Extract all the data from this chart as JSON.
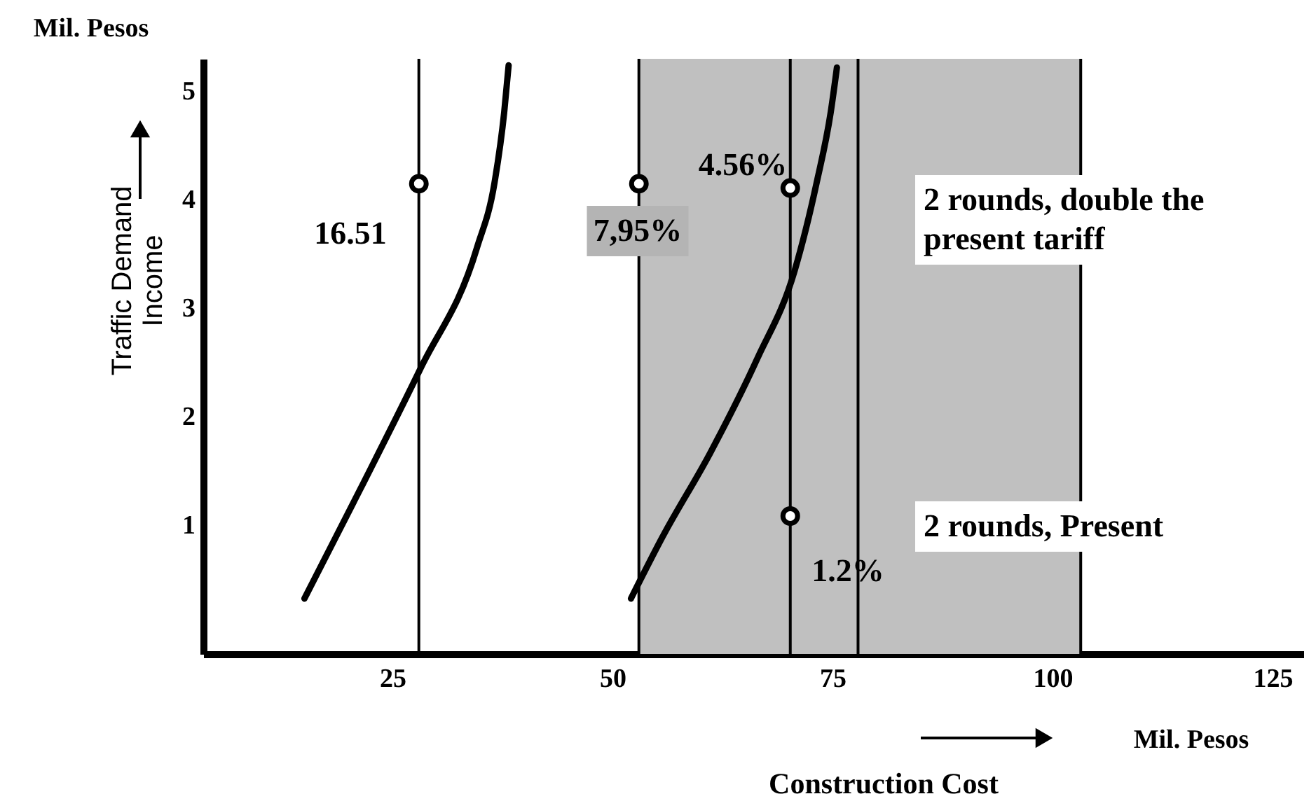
{
  "chart_data": {
    "type": "line",
    "xlabel": "Construction Cost",
    "ylabel": "Traffic Demand\nIncome",
    "xlim": [
      3.5,
      128.5
    ],
    "xticks": [
      25,
      50,
      75,
      100,
      125
    ],
    "ylim": [
      -0.19,
      5.29
    ],
    "yticks": [
      1,
      2,
      3,
      4,
      5
    ],
    "grid": false,
    "series": [
      {
        "color": "#000000",
        "x": [
          15.0,
          21.3,
          28.2,
          34.6,
          36.6,
          37.7,
          38.2
        ],
        "values": [
          0.32,
          1.32,
          2.44,
          3.55,
          4.15,
          4.8,
          5.23
        ]
      },
      {
        "color": "#000000",
        "x": [
          52.1,
          55.7,
          61.1,
          66.4,
          70.7,
          73.2,
          74.8,
          75.5
        ],
        "values": [
          0.32,
          0.89,
          1.66,
          2.52,
          3.34,
          4.15,
          4.8,
          5.21
        ]
      },
      {
        "type": "scatter",
        "color": "#000000",
        "marker": "circle",
        "x": [
          28.0,
          53.0,
          70.2,
          70.2
        ],
        "values": [
          4.14,
          4.14,
          4.1,
          1.08
        ]
      }
    ],
    "bands": [
      {
        "axis": "x",
        "from": 53.0,
        "to": 103.2,
        "color": "#c0c0c0"
      }
    ],
    "ref_lines": [
      {
        "axis": "x",
        "value": 28.0,
        "color": "#000000"
      },
      {
        "axis": "x",
        "value": 53.0,
        "color": "#000000"
      },
      {
        "axis": "x",
        "value": 70.2,
        "color": "#000000"
      },
      {
        "axis": "x",
        "value": 77.9,
        "color": "#000000"
      },
      {
        "axis": "x",
        "value": 103.2,
        "color": "#000000"
      }
    ],
    "annotations": [
      "16.51",
      "7,95%",
      "4.56%",
      "1.2%",
      "2 rounds, double the\npresent tariff",
      "2 rounds, Present",
      "Mil. Pesos",
      "Mil. Pesos"
    ]
  }
}
